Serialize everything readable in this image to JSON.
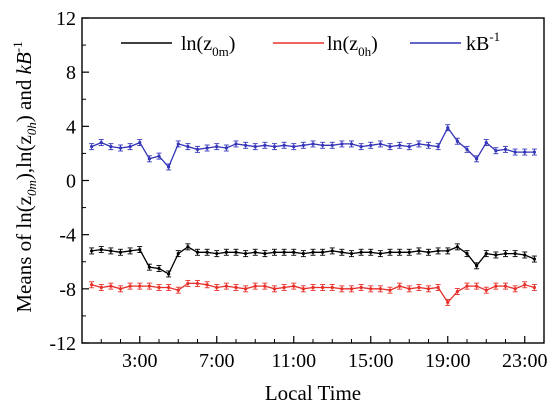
{
  "chart_data": {
    "type": "line",
    "xlabel": "Local Time",
    "ylabel": {
      "prefix": "Means of ln(z",
      "sub1": "0m",
      "mid": "),ln(z",
      "sub2": "0h",
      "end": ") and ",
      "italic": "kB",
      "sup": "-1"
    },
    "xlim": [
      0,
      24
    ],
    "ylim": [
      -12,
      12
    ],
    "x_ticks": [
      3,
      7,
      11,
      15,
      19,
      23
    ],
    "x_tick_labels": [
      "3:00",
      "7:00",
      "11:00",
      "15:00",
      "19:00",
      "23:00"
    ],
    "y_ticks": [
      -12,
      -8,
      -4,
      0,
      4,
      8,
      12
    ],
    "y_tick_labels": [
      "-12",
      "-8",
      "-4",
      "0",
      "4",
      "8",
      "12"
    ],
    "grid": false,
    "legend_position": "top",
    "x": [
      0.5,
      1.0,
      1.5,
      2.0,
      2.5,
      3.0,
      3.5,
      4.0,
      4.5,
      5.0,
      5.5,
      6.0,
      6.5,
      7.0,
      7.5,
      8.0,
      8.5,
      9.0,
      9.5,
      10.0,
      10.5,
      11.0,
      11.5,
      12.0,
      12.5,
      13.0,
      13.5,
      14.0,
      14.5,
      15.0,
      15.5,
      16.0,
      16.5,
      17.0,
      17.5,
      18.0,
      18.5,
      19.0,
      19.5,
      20.0,
      20.5,
      21.0,
      21.5,
      22.0,
      22.5,
      23.0,
      23.5
    ],
    "series": [
      {
        "name": "ln(z0m)",
        "legend_main": "ln(z",
        "legend_sub": "0m",
        "legend_end": ")",
        "color": "#000000",
        "values": [
          -5.2,
          -5.1,
          -5.2,
          -5.3,
          -5.2,
          -5.1,
          -6.4,
          -6.5,
          -6.9,
          -5.4,
          -4.9,
          -5.3,
          -5.3,
          -5.4,
          -5.3,
          -5.3,
          -5.4,
          -5.3,
          -5.4,
          -5.3,
          -5.3,
          -5.3,
          -5.4,
          -5.3,
          -5.3,
          -5.2,
          -5.3,
          -5.4,
          -5.3,
          -5.3,
          -5.4,
          -5.3,
          -5.3,
          -5.3,
          -5.2,
          -5.3,
          -5.2,
          -5.2,
          -4.9,
          -5.4,
          -6.3,
          -5.4,
          -5.5,
          -5.4,
          -5.4,
          -5.5,
          -5.8
        ]
      },
      {
        "name": "ln(z0h)",
        "legend_main": "ln(z",
        "legend_sub": "0h",
        "legend_end": ")",
        "color": "#e8302a",
        "values": [
          -7.7,
          -7.9,
          -7.8,
          -8.0,
          -7.8,
          -7.8,
          -7.8,
          -7.9,
          -7.9,
          -8.1,
          -7.6,
          -7.6,
          -7.7,
          -7.9,
          -7.8,
          -7.9,
          -8.0,
          -7.8,
          -7.8,
          -8.0,
          -7.9,
          -7.8,
          -8.0,
          -7.9,
          -7.9,
          -7.9,
          -8.0,
          -8.0,
          -7.9,
          -8.0,
          -8.0,
          -8.1,
          -7.8,
          -8.0,
          -7.9,
          -8.0,
          -7.9,
          -9.0,
          -8.2,
          -7.8,
          -7.8,
          -8.1,
          -7.8,
          -7.8,
          -8.0,
          -7.7,
          -7.9
        ]
      },
      {
        "name": "kB-1",
        "legend_main": "kB",
        "legend_sup": "-1",
        "color": "#3434b8",
        "values": [
          2.5,
          2.8,
          2.5,
          2.4,
          2.5,
          2.8,
          1.6,
          1.8,
          1.0,
          2.7,
          2.5,
          2.3,
          2.4,
          2.5,
          2.4,
          2.7,
          2.6,
          2.5,
          2.6,
          2.5,
          2.6,
          2.5,
          2.6,
          2.7,
          2.6,
          2.6,
          2.7,
          2.7,
          2.5,
          2.6,
          2.7,
          2.5,
          2.6,
          2.5,
          2.7,
          2.6,
          2.5,
          3.9,
          2.9,
          2.3,
          1.6,
          2.8,
          2.2,
          2.3,
          2.1,
          2.1,
          2.1
        ]
      }
    ]
  }
}
